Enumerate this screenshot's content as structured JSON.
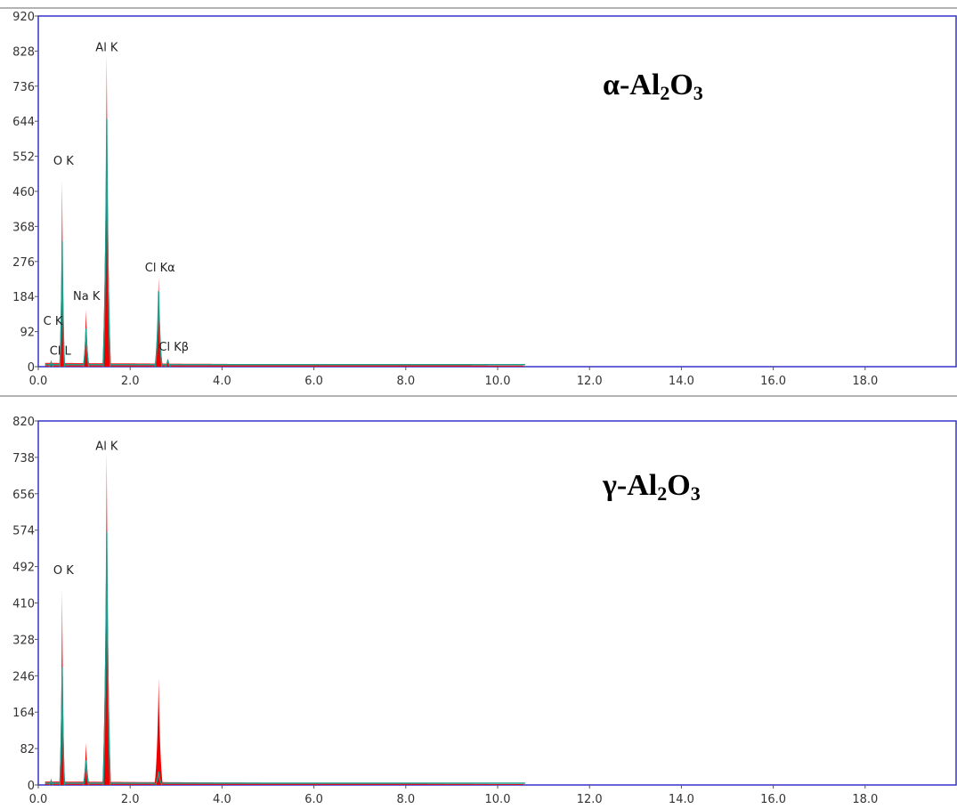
{
  "chart_data": [
    {
      "type": "area",
      "title_prefix": "α-Al",
      "title_sub1": "2",
      "title_mid": "O",
      "title_sub2": "3",
      "xlim": [
        0,
        20
      ],
      "ylim": [
        0,
        920
      ],
      "x_ticks": [
        0,
        2,
        4,
        6,
        8,
        10,
        12,
        14,
        16,
        18
      ],
      "x_tick_labels": [
        "0.0",
        "2.0",
        "4.0",
        "6.0",
        "8.0",
        "10.0",
        "12.0",
        "14.0",
        "16.0",
        "18.0"
      ],
      "y_ticks": [
        0,
        92,
        184,
        276,
        368,
        460,
        552,
        644,
        736,
        828,
        920
      ],
      "y_tick_labels": [
        "0",
        "92",
        "184",
        "276",
        "368",
        "460",
        "552",
        "644",
        "736",
        "828",
        "920"
      ],
      "colors": {
        "spectrum": "#ee0000",
        "fit": "#1e9e8e",
        "frame": "#3333cc"
      },
      "peaks": [
        {
          "x": 0.28,
          "y": 18,
          "fit": 12,
          "width": 0.025
        },
        {
          "x": 0.52,
          "y": 490,
          "fit": 330,
          "width": 0.028
        },
        {
          "x": 1.04,
          "y": 150,
          "fit": 100,
          "width": 0.033
        },
        {
          "x": 1.49,
          "y": 820,
          "fit": 650,
          "width": 0.042
        },
        {
          "x": 2.62,
          "y": 235,
          "fit": 198,
          "width": 0.04
        },
        {
          "x": 2.82,
          "y": 22,
          "fit": 18,
          "width": 0.03
        }
      ],
      "background": {
        "start": 10,
        "end": 3
      },
      "fit_end": 10.6,
      "labels": [
        {
          "text": "Al K",
          "x": 1.49,
          "y": 828
        },
        {
          "text": "O  K",
          "x": 0.55,
          "y": 530
        },
        {
          "text": "Na K",
          "x": 1.05,
          "y": 175
        },
        {
          "text": "C  K",
          "x": 0.32,
          "y": 110
        },
        {
          "text": "Cl L",
          "x": 0.48,
          "y": 32
        },
        {
          "text": "Cl Kα",
          "x": 2.65,
          "y": 250
        },
        {
          "text": "Cl Kβ",
          "x": 2.95,
          "y": 42
        }
      ]
    },
    {
      "type": "area",
      "title_prefix": "γ-Al",
      "title_sub1": "2",
      "title_mid": "O",
      "title_sub2": "3",
      "xlim": [
        0,
        20
      ],
      "ylim": [
        0,
        820
      ],
      "x_ticks": [
        0,
        2,
        4,
        6,
        8,
        10,
        12,
        14,
        16,
        18
      ],
      "x_tick_labels": [
        "0.0",
        "2.0",
        "4.0",
        "6.0",
        "8.0",
        "10.0",
        "12.0",
        "14.0",
        "16.0",
        "18.0"
      ],
      "y_ticks": [
        0,
        82,
        164,
        246,
        328,
        410,
        492,
        574,
        656,
        738,
        820
      ],
      "y_tick_labels": [
        "0",
        "82",
        "164",
        "246",
        "328",
        "410",
        "492",
        "574",
        "656",
        "738",
        "820"
      ],
      "colors": {
        "spectrum": "#ee0000",
        "fit": "#1e9e8e",
        "frame": "#3333cc"
      },
      "peaks": [
        {
          "x": 0.28,
          "y": 15,
          "fit": 10,
          "width": 0.025
        },
        {
          "x": 0.52,
          "y": 440,
          "fit": 265,
          "width": 0.028
        },
        {
          "x": 1.04,
          "y": 95,
          "fit": 55,
          "width": 0.033
        },
        {
          "x": 1.49,
          "y": 750,
          "fit": 570,
          "width": 0.042
        },
        {
          "x": 2.62,
          "y": 240,
          "fit": 30,
          "width": 0.04
        }
      ],
      "background": {
        "start": 8,
        "end": 2
      },
      "fit_end": 10.6,
      "labels": [
        {
          "text": "Al K",
          "x": 1.49,
          "y": 755
        },
        {
          "text": "O  K",
          "x": 0.55,
          "y": 475
        }
      ]
    }
  ]
}
